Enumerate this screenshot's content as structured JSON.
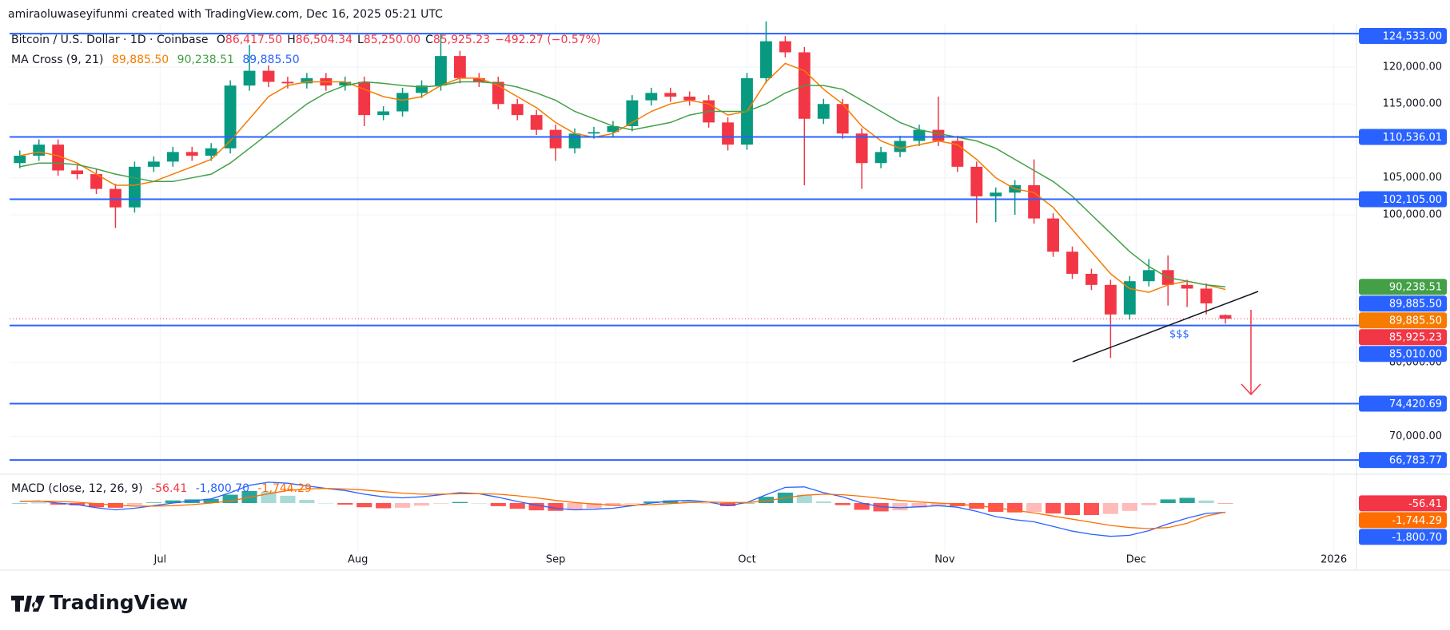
{
  "header": {
    "text": "amiraoluwaseyifunmi created with TradingView.com, Dec 16, 2025 05:21 UTC"
  },
  "footer": {
    "brand": "TradingView"
  },
  "chart_data": [
    {
      "type": "candlestick",
      "title": "Bitcoin / U.S. Dollar · 1D · Coinbase",
      "ohlc_legend": [
        {
          "key": "O",
          "value": "86,417.50"
        },
        {
          "key": "H",
          "value": "86,504.34"
        },
        {
          "key": "L",
          "value": "85,250.00"
        },
        {
          "key": "C",
          "value": "85,925.23"
        },
        {
          "key": "",
          "value": "−492.27 (−0.57%)"
        }
      ],
      "last_price": 85925.23,
      "up_color": "#089981",
      "down_color": "#f23645",
      "annotation": "$$$",
      "x": [
        -22,
        -19,
        -16,
        -13,
        -10,
        -7,
        -4,
        -1,
        2,
        5,
        8,
        11,
        14,
        17,
        20,
        23,
        26,
        29,
        32,
        35,
        38,
        41,
        44,
        47,
        50,
        53,
        56,
        59,
        62,
        65,
        68,
        71,
        74,
        77,
        80,
        83,
        86,
        89,
        92,
        95,
        98,
        101,
        104,
        107,
        110,
        113,
        116,
        119,
        122,
        125,
        128,
        131,
        134,
        137,
        140,
        143,
        146,
        149,
        152,
        155,
        158,
        161,
        164,
        167
      ],
      "open": [
        107000,
        108000,
        109500,
        106000,
        105500,
        103500,
        101000,
        106500,
        107200,
        108500,
        108000,
        109000,
        117500,
        119500,
        118000,
        117800,
        118500,
        117500,
        118000,
        113500,
        114000,
        116500,
        117500,
        121500,
        118500,
        118000,
        115000,
        113500,
        111500,
        109000,
        111000,
        111200,
        112000,
        115500,
        116500,
        116000,
        115500,
        112500,
        109500,
        118500,
        123500,
        122000,
        113000,
        115000,
        111000,
        107000,
        108500,
        110000,
        111500,
        110000,
        106500,
        102500,
        103000,
        104000,
        99500,
        95000,
        92000,
        90500,
        86500,
        91000,
        92500,
        90500,
        90000,
        86417.5
      ],
      "high": [
        108700,
        110200,
        110200,
        106700,
        106200,
        104200,
        107200,
        107900,
        109200,
        109200,
        109700,
        118200,
        123000,
        120200,
        118700,
        119200,
        119200,
        118700,
        118700,
        114700,
        117200,
        118200,
        124500,
        122200,
        119200,
        118700,
        115700,
        114200,
        112200,
        111700,
        111900,
        112700,
        116200,
        117200,
        117200,
        116700,
        116200,
        113200,
        119200,
        126200,
        124200,
        122700,
        115700,
        115700,
        111700,
        109200,
        110700,
        112200,
        116000,
        110700,
        107200,
        103700,
        104700,
        107500,
        100200,
        95700,
        92700,
        91200,
        91700,
        94000,
        94500,
        91200,
        90700,
        86504.34
      ],
      "low": [
        106300,
        107300,
        105300,
        104800,
        102800,
        98200,
        100300,
        105800,
        106500,
        107300,
        107300,
        108300,
        116800,
        117300,
        117100,
        117100,
        116800,
        116800,
        112000,
        112800,
        113300,
        115800,
        116800,
        117800,
        117300,
        114300,
        112800,
        110800,
        107300,
        108300,
        110300,
        110500,
        111300,
        114800,
        115300,
        114800,
        111800,
        108700,
        108800,
        117800,
        121300,
        104000,
        112300,
        110300,
        103500,
        106300,
        107800,
        109300,
        109300,
        105800,
        98900,
        99000,
        100000,
        98800,
        94300,
        91300,
        89800,
        80600,
        85800,
        90300,
        87700,
        87500,
        86500,
        85250
      ],
      "close": [
        108000,
        109500,
        106000,
        105500,
        103500,
        101000,
        106500,
        107200,
        108500,
        108000,
        109000,
        117500,
        119500,
        118000,
        117800,
        118500,
        117500,
        118000,
        113500,
        114000,
        116500,
        117500,
        121500,
        118500,
        118000,
        115000,
        113500,
        111500,
        109000,
        111000,
        111200,
        112000,
        115500,
        116500,
        116000,
        115500,
        112500,
        109500,
        118500,
        123500,
        122000,
        113000,
        115000,
        111000,
        107000,
        108500,
        110000,
        111500,
        110000,
        106500,
        102500,
        103000,
        104000,
        99500,
        95000,
        92000,
        90500,
        86500,
        91000,
        92500,
        90500,
        90000,
        88000,
        85925.23
      ],
      "ma": {
        "title": "MA Cross (9, 21)",
        "cross_label": "89,885.50",
        "cross_color": "#2962ff",
        "series": [
          {
            "color": "#f57c00",
            "label": "89,885.50",
            "values": [
              108000,
              108500,
              108000,
              107000,
              105500,
              104000,
              104000,
              104500,
              105500,
              106500,
              107500,
              110000,
              113000,
              116000,
              117500,
              118000,
              118000,
              118000,
              117000,
              116000,
              115500,
              116000,
              117500,
              118500,
              118500,
              117500,
              116000,
              114500,
              112500,
              111000,
              110500,
              111000,
              112500,
              114000,
              115000,
              115500,
              115000,
              113500,
              114000,
              118000,
              120500,
              119500,
              117000,
              115000,
              112000,
              110000,
              109000,
              109500,
              110000,
              109500,
              107500,
              105000,
              103500,
              103000,
              101000,
              98000,
              95000,
              92000,
              90000,
              89500,
              90500,
              91000,
              90500,
              89885.5
            ]
          },
          {
            "color": "#43a047",
            "label": "90,238.51",
            "values": [
              106500,
              107000,
              107000,
              106800,
              106200,
              105500,
              105000,
              104500,
              104500,
              105000,
              105500,
              107000,
              109000,
              111000,
              113000,
              115000,
              116500,
              117500,
              118000,
              117800,
              117500,
              117300,
              117500,
              118000,
              118000,
              117800,
              117300,
              116500,
              115500,
              114000,
              113000,
              112000,
              111500,
              112000,
              112500,
              113500,
              114000,
              114000,
              114000,
              115000,
              116500,
              117500,
              117500,
              117000,
              115500,
              114000,
              112500,
              111500,
              111000,
              110500,
              110000,
              109000,
              107500,
              106000,
              104500,
              102500,
              100000,
              97500,
              95000,
              93000,
              91500,
              91000,
              90500,
              90238.51
            ]
          }
        ]
      },
      "levels": [
        {
          "value": 124533,
          "label": "124,533.00"
        },
        {
          "value": 110536.01,
          "label": "110,536.01"
        },
        {
          "value": 102105,
          "label": "102,105.00"
        },
        {
          "value": 85010,
          "label": "85,010.00"
        },
        {
          "value": 74420.69,
          "label": "74,420.69"
        },
        {
          "value": 66783.77,
          "label": "66,783.77"
        }
      ],
      "level_color": "#2962ff",
      "xlim": [
        -23.6,
        187.3
      ],
      "xticks": [
        {
          "value": 0,
          "label": "Jul"
        },
        {
          "value": 31,
          "label": "Aug"
        },
        {
          "value": 62,
          "label": "Sep"
        },
        {
          "value": 92,
          "label": "Oct"
        },
        {
          "value": 123,
          "label": "Nov"
        },
        {
          "value": 153,
          "label": "Dec"
        },
        {
          "value": 184,
          "label": "2026"
        }
      ],
      "ylim": [
        65500,
        125300
      ],
      "yticks": [
        {
          "value": 120000,
          "label": "120,000.00"
        },
        {
          "value": 115000,
          "label": "115,000.00"
        },
        {
          "value": 105000,
          "label": "105,000.00"
        },
        {
          "value": 100000,
          "label": "100,000.00"
        },
        {
          "value": 80000,
          "label": "80,000.00"
        },
        {
          "value": 70000,
          "label": "70,000.00"
        }
      ],
      "grid": true
    },
    {
      "type": "macd",
      "title": "MACD (close, 12, 26, 9)",
      "x": [
        -22,
        -19,
        -16,
        -13,
        -10,
        -7,
        -4,
        -1,
        2,
        5,
        8,
        11,
        14,
        17,
        20,
        23,
        26,
        29,
        32,
        35,
        38,
        41,
        44,
        47,
        50,
        53,
        56,
        59,
        62,
        65,
        68,
        71,
        74,
        77,
        80,
        83,
        86,
        89,
        92,
        95,
        98,
        101,
        104,
        107,
        110,
        113,
        116,
        119,
        122,
        125,
        128,
        131,
        134,
        137,
        140,
        143,
        146,
        149,
        152,
        155,
        158,
        161,
        164,
        167
      ],
      "series": [
        {
          "kind": "histogram",
          "color": "#26a69a",
          "negative_color": "#ff5252",
          "label": "-56.41",
          "label_color": "#f23645",
          "values": [
            0,
            50,
            -300,
            -450,
            -800,
            -900,
            -400,
            100,
            500,
            700,
            800,
            1600,
            2300,
            2200,
            1400,
            600,
            0,
            -300,
            -800,
            -1000,
            -900,
            -500,
            -100,
            200,
            0,
            -600,
            -1100,
            -1400,
            -1500,
            -1400,
            -1000,
            -600,
            -100,
            300,
            500,
            400,
            0,
            -600,
            0,
            1200,
            2000,
            1600,
            300,
            -400,
            -1300,
            -1600,
            -1400,
            -900,
            -500,
            -600,
            -1100,
            -1700,
            -1800,
            -1700,
            -2000,
            -2300,
            -2300,
            -2100,
            -1500,
            -400,
            700,
            1000,
            500,
            -56.41
          ]
        },
        {
          "kind": "line",
          "color": "#2962ff",
          "label": "-1,800.70",
          "values": [
            300,
            400,
            0,
            -300,
            -900,
            -1300,
            -1000,
            -500,
            0,
            400,
            800,
            2000,
            3400,
            4000,
            3800,
            3300,
            2800,
            2400,
            1700,
            1200,
            1000,
            1200,
            1600,
            2000,
            1800,
            1100,
            300,
            -400,
            -1000,
            -1300,
            -1200,
            -1000,
            -500,
            0,
            400,
            500,
            200,
            -500,
            100,
            1600,
            3000,
            3100,
            2000,
            1200,
            0,
            -700,
            -900,
            -700,
            -500,
            -800,
            -1600,
            -2600,
            -3200,
            -3600,
            -4500,
            -5400,
            -6000,
            -6400,
            -6200,
            -5300,
            -4000,
            -2900,
            -2000,
            -1800.7
          ]
        },
        {
          "kind": "line",
          "color": "#ff6d00",
          "label": "-1,744.29",
          "values": [
            300,
            350,
            300,
            150,
            -100,
            -400,
            -600,
            -600,
            -500,
            -300,
            0,
            400,
            1100,
            1800,
            2400,
            2700,
            2800,
            2700,
            2500,
            2200,
            1900,
            1700,
            1700,
            1800,
            1800,
            1700,
            1400,
            1000,
            500,
            100,
            -200,
            -400,
            -400,
            -300,
            -100,
            100,
            200,
            100,
            100,
            400,
            1000,
            1500,
            1700,
            1600,
            1300,
            900,
            500,
            200,
            0,
            -200,
            -500,
            -900,
            -1400,
            -1900,
            -2500,
            -3100,
            -3700,
            -4300,
            -4700,
            -4900,
            -4700,
            -3900,
            -2500,
            -1744.29
          ]
        }
      ],
      "xlim": [
        -23.6,
        187.3
      ],
      "ylim": [
        -9200,
        4600
      ]
    }
  ]
}
